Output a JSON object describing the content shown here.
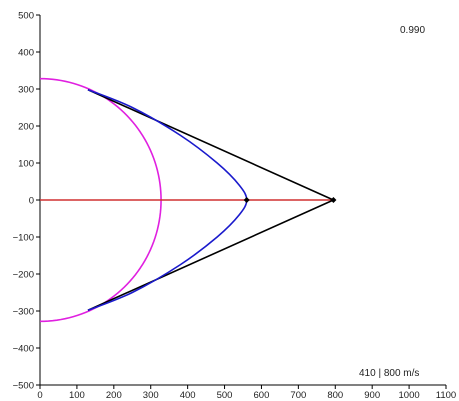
{
  "chart_data": {
    "type": "line",
    "title": "",
    "xlabel": "",
    "ylabel": "",
    "xlim": [
      0,
      1100
    ],
    "ylim": [
      -500,
      500
    ],
    "grid": false,
    "x_ticks": [
      "0",
      "100",
      "200",
      "300",
      "400",
      "500",
      "600",
      "700",
      "800",
      "900",
      "1000",
      "1100"
    ],
    "y_ticks": [
      "500",
      "400",
      "300",
      "200",
      "100",
      "0",
      "−100",
      "−200",
      "−300",
      "−400",
      "−500"
    ],
    "x_tick_values": [
      0,
      100,
      200,
      300,
      400,
      500,
      600,
      700,
      800,
      900,
      1000,
      1100
    ],
    "y_tick_values": [
      500,
      400,
      300,
      200,
      100,
      0,
      -100,
      -200,
      -300,
      -400,
      -500
    ],
    "annotations": {
      "top_right": "0.990",
      "bottom_right": "410 | 800 m/s"
    },
    "series": [
      {
        "color": "#e020e0",
        "kind": "circle_arc",
        "center": [
          0,
          0
        ],
        "radius": 328,
        "theta_range_deg": [
          -90,
          90
        ]
      },
      {
        "color": "#d03030",
        "kind": "polyline",
        "points": [
          [
            0,
            0
          ],
          [
            795,
            0
          ]
        ]
      },
      {
        "color": "#000000",
        "kind": "polyline",
        "points": [
          [
            130,
            298
          ],
          [
            795,
            0
          ],
          [
            130,
            -298
          ]
        ]
      },
      {
        "color": "#1a1acc",
        "kind": "curve",
        "points": [
          [
            130,
            298
          ],
          [
            250,
            250
          ],
          [
            380,
            175
          ],
          [
            480,
            100
          ],
          [
            540,
            40
          ],
          [
            560,
            0
          ],
          [
            540,
            -40
          ],
          [
            480,
            -100
          ],
          [
            380,
            -175
          ],
          [
            250,
            -250
          ],
          [
            130,
            -298
          ]
        ]
      }
    ],
    "markers": [
      {
        "color": "#000000",
        "x": 560,
        "y": 0
      },
      {
        "color": "#000000",
        "x": 795,
        "y": 0
      }
    ]
  }
}
